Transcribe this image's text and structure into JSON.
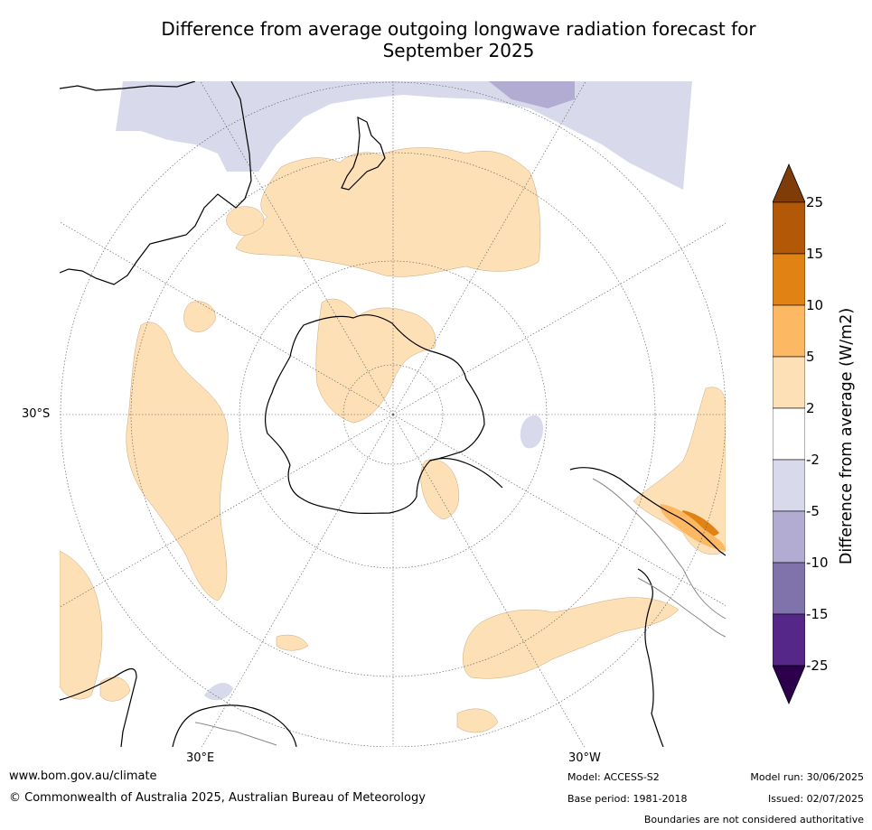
{
  "title_line1": "Difference from average outgoing longwave radiation forecast for",
  "title_line2": "September 2025",
  "map_labels": {
    "lat_30s": "30°S",
    "lon_30e": "30°E",
    "lon_30w": "30°W"
  },
  "colorbar": {
    "title": "Difference from average (W/m2)",
    "ticks": [
      "25",
      "15",
      "10",
      "5",
      "2",
      "-2",
      "-5",
      "-10",
      "-15",
      "-25"
    ],
    "colors": {
      "over": "#7f3b08",
      "b15_25": "#b35806",
      "b10_15": "#e08214",
      "b5_10": "#fdb863",
      "b2_5": "#fee0b6",
      "neutral": "#ffffff",
      "bm5_m2": "#d8daeb",
      "bm10_m5": "#b2abd2",
      "bm15_m10": "#8073ac",
      "bm25_m15": "#542788",
      "under": "#2d004b"
    }
  },
  "footer": {
    "url": "www.bom.gov.au/climate",
    "copyright": "© Commonwealth of Australia 2025, Australian Bureau of Meteorology",
    "model": "Model: ACCESS-S2",
    "base_period": "Base period: 1981-2018",
    "model_run": "Model run: 30/06/2025",
    "issued": "Issued: 02/07/2025",
    "disclaimer": "Boundaries are not considered authoritative"
  }
}
